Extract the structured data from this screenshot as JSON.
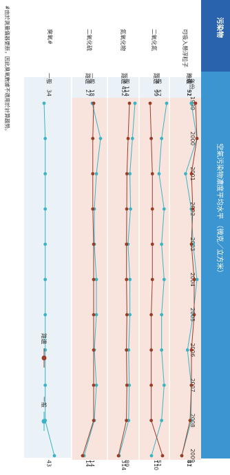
{
  "header": {
    "pollutant_heading": "污染物",
    "chart_title": "空氣污染物濃度平均水平 （微克／立方米）",
    "year_heading": "年份"
  },
  "colors": {
    "heading_band": "#2a63ad",
    "title_band": "#3a95d0",
    "panel": "#eaf2f8",
    "roadside_band": "#f8e4dd",
    "general": "#3ab3c4",
    "roadside": "#9a3c26"
  },
  "legend": {
    "roadside": "路邊",
    "general": "一般"
  },
  "footnote": "#由於測量儀器更新，因此臭氧數據不適用於計算趨勢。",
  "chart_data": {
    "type": "line",
    "x": [
      "1999",
      "2000",
      "2001",
      "2002",
      "2003",
      "2004",
      "2005",
      "2006",
      "2007",
      "2008",
      "2009"
    ],
    "groups": [
      {
        "pollutant": "可吸入懸浮粒子",
        "series": [
          {
            "name": "一般",
            "values": [
              52,
              55,
              49,
              52,
              53,
              55,
              53,
              50,
              52,
              52,
              47
            ]
          },
          {
            "name": "路邊",
            "values": [
              91,
              92,
              88,
              89,
              88,
              90,
              90,
              88,
              88,
              87,
              81
            ]
          }
        ],
        "labels": {
          "start_general": "52",
          "start_roadside": "91",
          "end_general": "47",
          "end_roadside": "81"
        }
      },
      {
        "pollutant": "二氧化氮",
        "series": [
          {
            "name": "一般",
            "values": [
              57,
              55,
              54,
              56,
              55,
              56,
              55,
              55,
              56,
              55,
              51
            ]
          },
          {
            "name": "路邊",
            "values": [
              99,
              100,
              101,
              101,
              101,
              101,
              100,
              100,
              100,
              100,
              110
            ]
          }
        ],
        "labels": {
          "start_general": "57",
          "start_roadside": "99",
          "end_general": "51",
          "end_roadside": "110"
        }
      },
      {
        "pollutant": "氮氧化物",
        "series": [
          {
            "name": "一般",
            "values": [
              114,
              110,
              106,
              107,
              103,
              106,
              106,
              104,
              105,
              104,
              89
            ]
          },
          {
            "name": "路邊",
            "values": [
              452,
              435,
              420,
              418,
              415,
              415,
              420,
              414,
              420,
              414,
              314
            ]
          }
        ],
        "labels": {
          "start_general": "114",
          "start_roadside": "452",
          "end_general": "89",
          "end_roadside": "314"
        }
      },
      {
        "pollutant": "二氧化硫",
        "series": [
          {
            "name": "一般",
            "values": [
              18,
              22,
              20,
              19,
              19,
              20,
              20,
              19,
              20,
              19,
              14
            ]
          },
          {
            "name": "路邊",
            "values": [
              27,
              26,
              26,
              26,
              27,
              27,
              27,
              27,
              27,
              27,
              14
            ]
          }
        ],
        "labels": {
          "start_general": "18",
          "start_roadside": "27",
          "end_general": "14",
          "end_roadside": "14"
        }
      },
      {
        "pollutant": "臭氧#",
        "series": [
          {
            "name": "一般",
            "values": [
              34,
              35,
              35,
              35,
              35,
              35,
              35,
              35,
              35,
              35,
              43
            ]
          }
        ],
        "labels": {
          "start_general": "34",
          "end_general": "43"
        }
      }
    ]
  }
}
